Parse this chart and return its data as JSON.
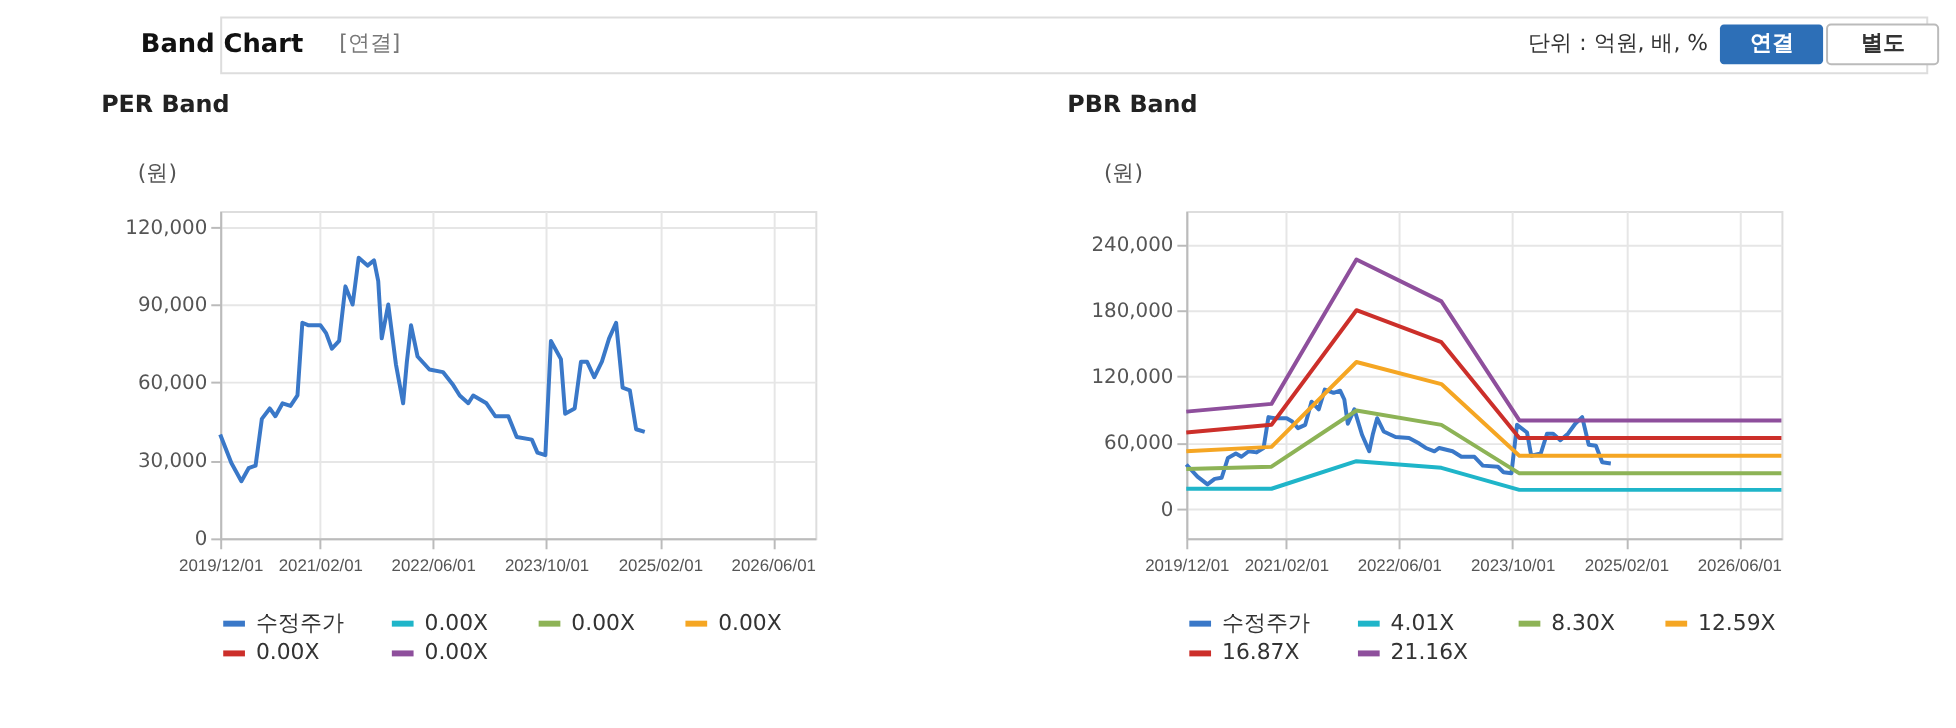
{
  "chart_data": [
    {
      "type": "line",
      "title": "PER Band",
      "ylabel": "(원)",
      "annotations": [
        "Band Chart",
        "[연결]",
        "단위 : 억원, 배, %",
        "연결",
        "별도"
      ],
      "x": [
        "2019-12-01",
        "2020-01-18",
        "2020-03-01",
        "2020-04-01",
        "2020-05-01",
        "2020-05-28",
        "2020-07-01",
        "2020-07-25",
        "2020-08-25",
        "2020-09-28",
        "2020-10-28",
        "2020-11-18",
        "2020-12-15",
        "2021-02-04",
        "2021-02-28",
        "2021-03-25",
        "2021-04-25",
        "2021-05-22",
        "2021-06-22",
        "2021-07-18",
        "2021-08-25",
        "2021-09-22",
        "2021-10-10",
        "2021-10-25",
        "2021-11-22",
        "2021-12-25",
        "2022-01-25",
        "2022-02-10",
        "2022-02-28",
        "2022-03-28",
        "2022-05-18",
        "2022-07-15",
        "2022-08-28",
        "2022-09-25",
        "2022-11-01",
        "2022-11-22",
        "2023-01-18",
        "2023-02-25",
        "2023-04-22",
        "2023-05-28",
        "2023-08-01",
        "2023-08-25",
        "2023-09-28",
        "2023-10-22",
        "2023-12-04",
        "2023-12-22",
        "2024-02-01",
        "2024-02-28",
        "2024-03-25",
        "2024-04-25",
        "2024-05-28",
        "2024-06-28",
        "2024-07-28",
        "2024-08-25",
        "2024-09-25",
        "2024-10-22",
        "2024-11-28"
      ],
      "series": [
        {
          "name": "수정주가",
          "color": "#3a78c8",
          "values": [
            40000,
            29000,
            22000,
            27000,
            28000,
            46000,
            50000,
            47000,
            52000,
            51000,
            55000,
            83000,
            82000,
            82000,
            79000,
            73000,
            76000,
            97000,
            90000,
            108000,
            105000,
            107000,
            99000,
            77000,
            90000,
            67000,
            52000,
            68000,
            82000,
            70000,
            65000,
            64000,
            59000,
            55000,
            52000,
            55000,
            52000,
            47000,
            47000,
            39000,
            38000,
            33000,
            32000,
            76000,
            69000,
            48000,
            50000,
            68000,
            68000,
            62000,
            68000,
            77000,
            83000,
            58000,
            57000,
            42000,
            41000
          ]
        },
        {
          "name": "0.00X",
          "color": "#1fb5c9",
          "values": [
            null,
            null,
            null,
            null,
            null,
            null,
            null,
            null,
            null,
            null,
            null,
            null,
            null,
            null,
            null,
            null,
            null,
            null,
            null,
            null,
            null,
            null,
            null,
            null,
            null,
            null,
            null,
            null,
            null,
            null,
            null,
            null,
            null,
            null,
            null,
            null,
            null,
            null,
            null,
            null,
            null,
            null,
            null,
            null,
            null,
            null,
            null,
            null,
            null,
            null,
            null,
            null,
            null,
            null,
            null,
            null,
            null
          ]
        },
        {
          "name": "0.00X",
          "color": "#8db356",
          "values": [
            null,
            null,
            null,
            null,
            null,
            null,
            null,
            null,
            null,
            null,
            null,
            null,
            null,
            null,
            null,
            null,
            null,
            null,
            null,
            null,
            null,
            null,
            null,
            null,
            null,
            null,
            null,
            null,
            null,
            null,
            null,
            null,
            null,
            null,
            null,
            null,
            null,
            null,
            null,
            null,
            null,
            null,
            null,
            null,
            null,
            null,
            null,
            null,
            null,
            null,
            null,
            null,
            null,
            null,
            null,
            null,
            null
          ]
        },
        {
          "name": "0.00X",
          "color": "#f5a623",
          "values": [
            null,
            null,
            null,
            null,
            null,
            null,
            null,
            null,
            null,
            null,
            null,
            null,
            null,
            null,
            null,
            null,
            null,
            null,
            null,
            null,
            null,
            null,
            null,
            null,
            null,
            null,
            null,
            null,
            null,
            null,
            null,
            null,
            null,
            null,
            null,
            null,
            null,
            null,
            null,
            null,
            null,
            null,
            null,
            null,
            null,
            null,
            null,
            null,
            null,
            null,
            null,
            null,
            null,
            null,
            null,
            null,
            null
          ]
        },
        {
          "name": "0.00X",
          "color": "#cc2f2a",
          "values": [
            null,
            null,
            null,
            null,
            null,
            null,
            null,
            null,
            null,
            null,
            null,
            null,
            null,
            null,
            null,
            null,
            null,
            null,
            null,
            null,
            null,
            null,
            null,
            null,
            null,
            null,
            null,
            null,
            null,
            null,
            null,
            null,
            null,
            null,
            null,
            null,
            null,
            null,
            null,
            null,
            null,
            null,
            null,
            null,
            null,
            null,
            null,
            null,
            null,
            null,
            null,
            null,
            null,
            null,
            null,
            null,
            null
          ]
        },
        {
          "name": "0.00X",
          "color": "#8e4f9c",
          "values": [
            null,
            null,
            null,
            null,
            null,
            null,
            null,
            null,
            null,
            null,
            null,
            null,
            null,
            null,
            null,
            null,
            null,
            null,
            null,
            null,
            null,
            null,
            null,
            null,
            null,
            null,
            null,
            null,
            null,
            null,
            null,
            null,
            null,
            null,
            null,
            null,
            null,
            null,
            null,
            null,
            null,
            null,
            null,
            null,
            null,
            null,
            null,
            null,
            null,
            null,
            null,
            null,
            null,
            null,
            null,
            null,
            null
          ]
        }
      ],
      "xlim": [
        "2019-12-01",
        "2026-12-01"
      ],
      "xticks": [
        {
          "value": "2019-12-01",
          "label": "2019/12/01"
        },
        {
          "value": "2021-02-01",
          "label": "2021/02/01"
        },
        {
          "value": "2022-06-01",
          "label": "2022/06/01"
        },
        {
          "value": "2023-10-01",
          "label": "2023/10/01"
        },
        {
          "value": "2025-02-01",
          "label": "2025/02/01"
        },
        {
          "value": "2026-06-01",
          "label": "2026/06/01"
        }
      ],
      "ylim": [
        0,
        126000
      ],
      "yticks": [
        {
          "value": 0,
          "label": "0"
        },
        {
          "value": 30000,
          "label": "30,000"
        },
        {
          "value": 60000,
          "label": "60,000"
        },
        {
          "value": 90000,
          "label": "90,000"
        },
        {
          "value": 120000,
          "label": "120,000"
        }
      ],
      "grid": true,
      "legend": "bottom",
      "marker": "none",
      "line_style": "solid"
    },
    {
      "type": "line",
      "title": "PBR Band",
      "ylabel": "(원)",
      "x": [
        "2019-12-01",
        "2020-01-18",
        "2020-03-01",
        "2020-04-01",
        "2020-05-01",
        "2020-05-28",
        "2020-07-01",
        "2020-07-25",
        "2020-08-25",
        "2020-09-28",
        "2020-10-28",
        "2020-11-18",
        "2020-12-15",
        "2021-02-04",
        "2021-02-28",
        "2021-03-25",
        "2021-04-25",
        "2021-05-22",
        "2021-06-22",
        "2021-07-18",
        "2021-08-25",
        "2021-09-22",
        "2021-10-10",
        "2021-10-25",
        "2021-11-22",
        "2021-12-25",
        "2022-01-25",
        "2022-02-10",
        "2022-02-28",
        "2022-03-28",
        "2022-05-18",
        "2022-07-15",
        "2022-08-28",
        "2022-09-25",
        "2022-11-01",
        "2022-11-22",
        "2023-01-18",
        "2023-02-25",
        "2023-04-22",
        "2023-05-28",
        "2023-08-01",
        "2023-08-25",
        "2023-09-28",
        "2023-10-22",
        "2023-12-04",
        "2023-12-22",
        "2024-02-01",
        "2024-02-28",
        "2024-03-25",
        "2024-04-25",
        "2024-05-28",
        "2024-06-28",
        "2024-07-28",
        "2024-08-25",
        "2024-09-25",
        "2024-10-22",
        "2024-11-28"
      ],
      "series": [
        {
          "name": "수정주가",
          "color": "#3a78c8",
          "values": [
            40000,
            29000,
            22000,
            27000,
            28000,
            46000,
            50000,
            47000,
            52000,
            51000,
            55000,
            83000,
            82000,
            82000,
            79000,
            73000,
            76000,
            97000,
            90000,
            108000,
            105000,
            107000,
            99000,
            77000,
            90000,
            67000,
            52000,
            68000,
            82000,
            70000,
            65000,
            64000,
            59000,
            55000,
            52000,
            55000,
            52000,
            47000,
            47000,
            39000,
            38000,
            33000,
            32000,
            76000,
            69000,
            48000,
            50000,
            68000,
            68000,
            62000,
            68000,
            77000,
            83000,
            58000,
            57000,
            42000,
            41000
          ]
        },
        {
          "name": "4.01X",
          "color": "#1fb5c9",
          "x": [
            "2019-12-01",
            "2020-12-01",
            "2021-12-01",
            "2022-12-01",
            "2023-11-01",
            "2026-12-01"
          ],
          "values": [
            18000,
            18000,
            43000,
            37000,
            17000,
            17000
          ]
        },
        {
          "name": "8.30X",
          "color": "#8db356",
          "x": [
            "2019-12-01",
            "2020-12-01",
            "2021-12-01",
            "2022-12-01",
            "2023-11-01",
            "2026-12-01"
          ],
          "values": [
            36000,
            38000,
            89000,
            76000,
            32000,
            32000
          ]
        },
        {
          "name": "12.59X",
          "color": "#f5a623",
          "x": [
            "2019-12-01",
            "2020-12-01",
            "2021-12-01",
            "2022-12-01",
            "2023-11-01",
            "2026-12-01"
          ],
          "values": [
            52000,
            56000,
            133000,
            113000,
            48000,
            48000
          ]
        },
        {
          "name": "16.87X",
          "color": "#cc2f2a",
          "x": [
            "2019-12-01",
            "2020-12-01",
            "2021-12-01",
            "2022-12-01",
            "2023-11-01",
            "2026-12-01"
          ],
          "values": [
            69000,
            76000,
            180000,
            151000,
            64000,
            64000
          ]
        },
        {
          "name": "21.16X",
          "color": "#8e4f9c",
          "x": [
            "2019-12-01",
            "2020-12-01",
            "2021-12-01",
            "2022-12-01",
            "2023-11-01",
            "2026-12-01"
          ],
          "values": [
            88000,
            95000,
            226000,
            188000,
            80000,
            80000
          ]
        }
      ],
      "xlim": [
        "2019-12-01",
        "2026-12-01"
      ],
      "xticks": [
        {
          "value": "2019-12-01",
          "label": "2019/12/01"
        },
        {
          "value": "2021-02-01",
          "label": "2021/02/01"
        },
        {
          "value": "2022-06-01",
          "label": "2022/06/01"
        },
        {
          "value": "2023-10-01",
          "label": "2023/10/01"
        },
        {
          "value": "2025-02-01",
          "label": "2025/02/01"
        },
        {
          "value": "2026-06-01",
          "label": "2026/06/01"
        }
      ],
      "ylim": [
        -27000,
        270000
      ],
      "yticks": [
        {
          "value": 0,
          "label": "0"
        },
        {
          "value": 60000,
          "label": "60,000"
        },
        {
          "value": 120000,
          "label": "120,000"
        },
        {
          "value": 180000,
          "label": "180,000"
        },
        {
          "value": 240000,
          "label": "240,000"
        }
      ],
      "grid": true,
      "legend": "bottom",
      "marker": "none",
      "line_style": "solid"
    }
  ]
}
